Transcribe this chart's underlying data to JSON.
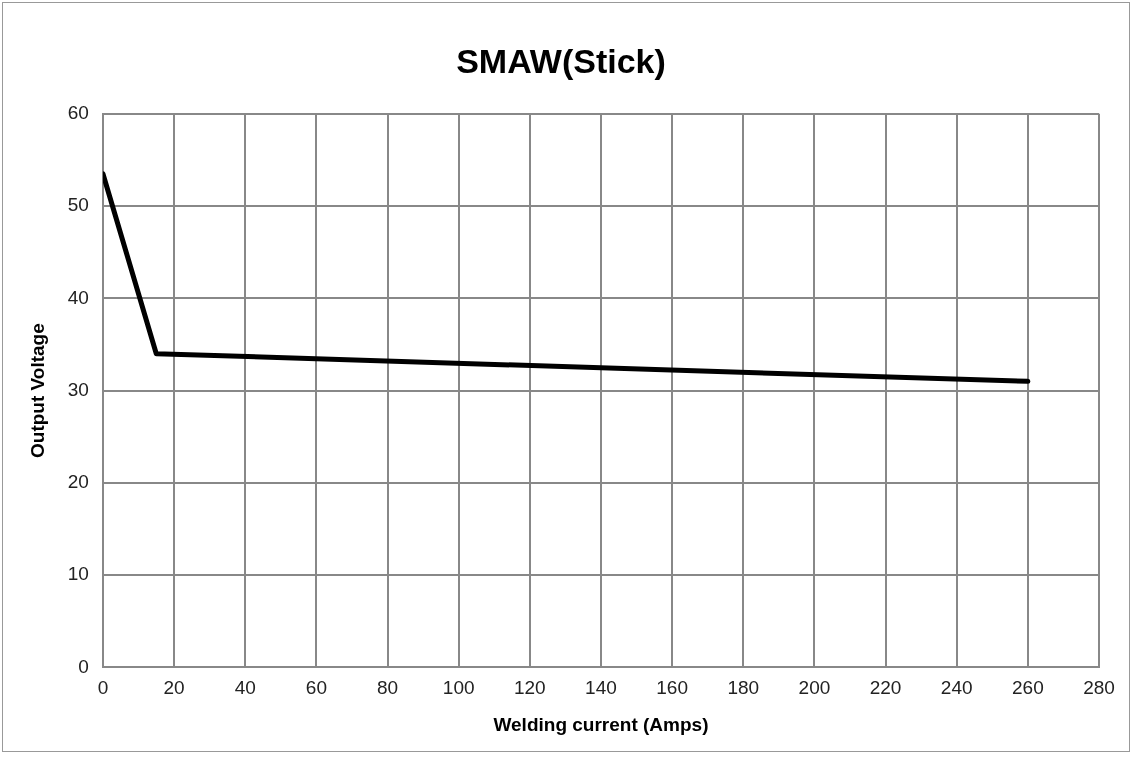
{
  "chart_data": {
    "type": "line",
    "title": "SMAW(Stick)",
    "xlabel": "Welding current (Amps)",
    "ylabel": "Output Voltage",
    "series": [
      {
        "color": "#000000",
        "x": [
          0,
          15,
          260
        ],
        "values": [
          53.5,
          34,
          31
        ]
      }
    ],
    "xlim": [
      0,
      280
    ],
    "xticks": [
      0,
      20,
      40,
      60,
      80,
      100,
      120,
      140,
      160,
      180,
      200,
      220,
      240,
      260,
      280
    ],
    "ylim": [
      0,
      60
    ],
    "yticks": [
      0,
      10,
      20,
      30,
      40,
      50,
      60
    ],
    "grid": true,
    "legend": false,
    "marker": "none",
    "line_style": "solid"
  }
}
